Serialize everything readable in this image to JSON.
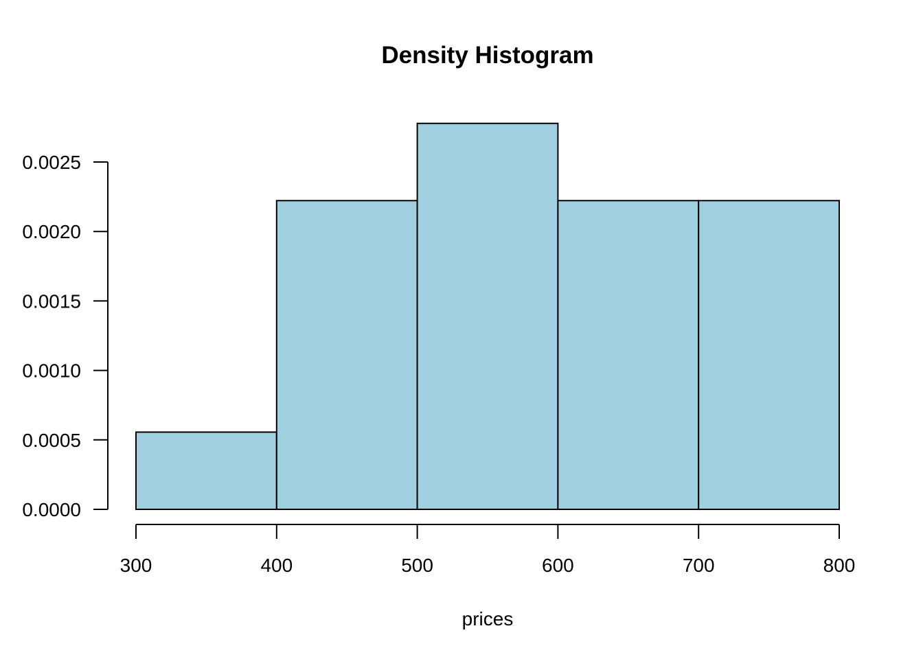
{
  "chart_data": {
    "type": "bar",
    "title": "Density Histogram",
    "xlabel": "prices",
    "ylabel": "",
    "bins": [
      {
        "from": 300,
        "to": 400,
        "density": 0.000556
      },
      {
        "from": 400,
        "to": 500,
        "density": 0.002222
      },
      {
        "from": 500,
        "to": 600,
        "density": 0.002778
      },
      {
        "from": 600,
        "to": 700,
        "density": 0.002222
      },
      {
        "from": 700,
        "to": 800,
        "density": 0.002222
      }
    ],
    "xlim": [
      300,
      800
    ],
    "ylim": [
      0,
      0.0025
    ],
    "x_ticks": [
      "300",
      "400",
      "500",
      "600",
      "700",
      "800"
    ],
    "y_ticks": [
      "0.0000",
      "0.0005",
      "0.0010",
      "0.0015",
      "0.0020",
      "0.0025"
    ],
    "bar_color": "#a0cfe0",
    "grid": false,
    "legend": "none"
  }
}
